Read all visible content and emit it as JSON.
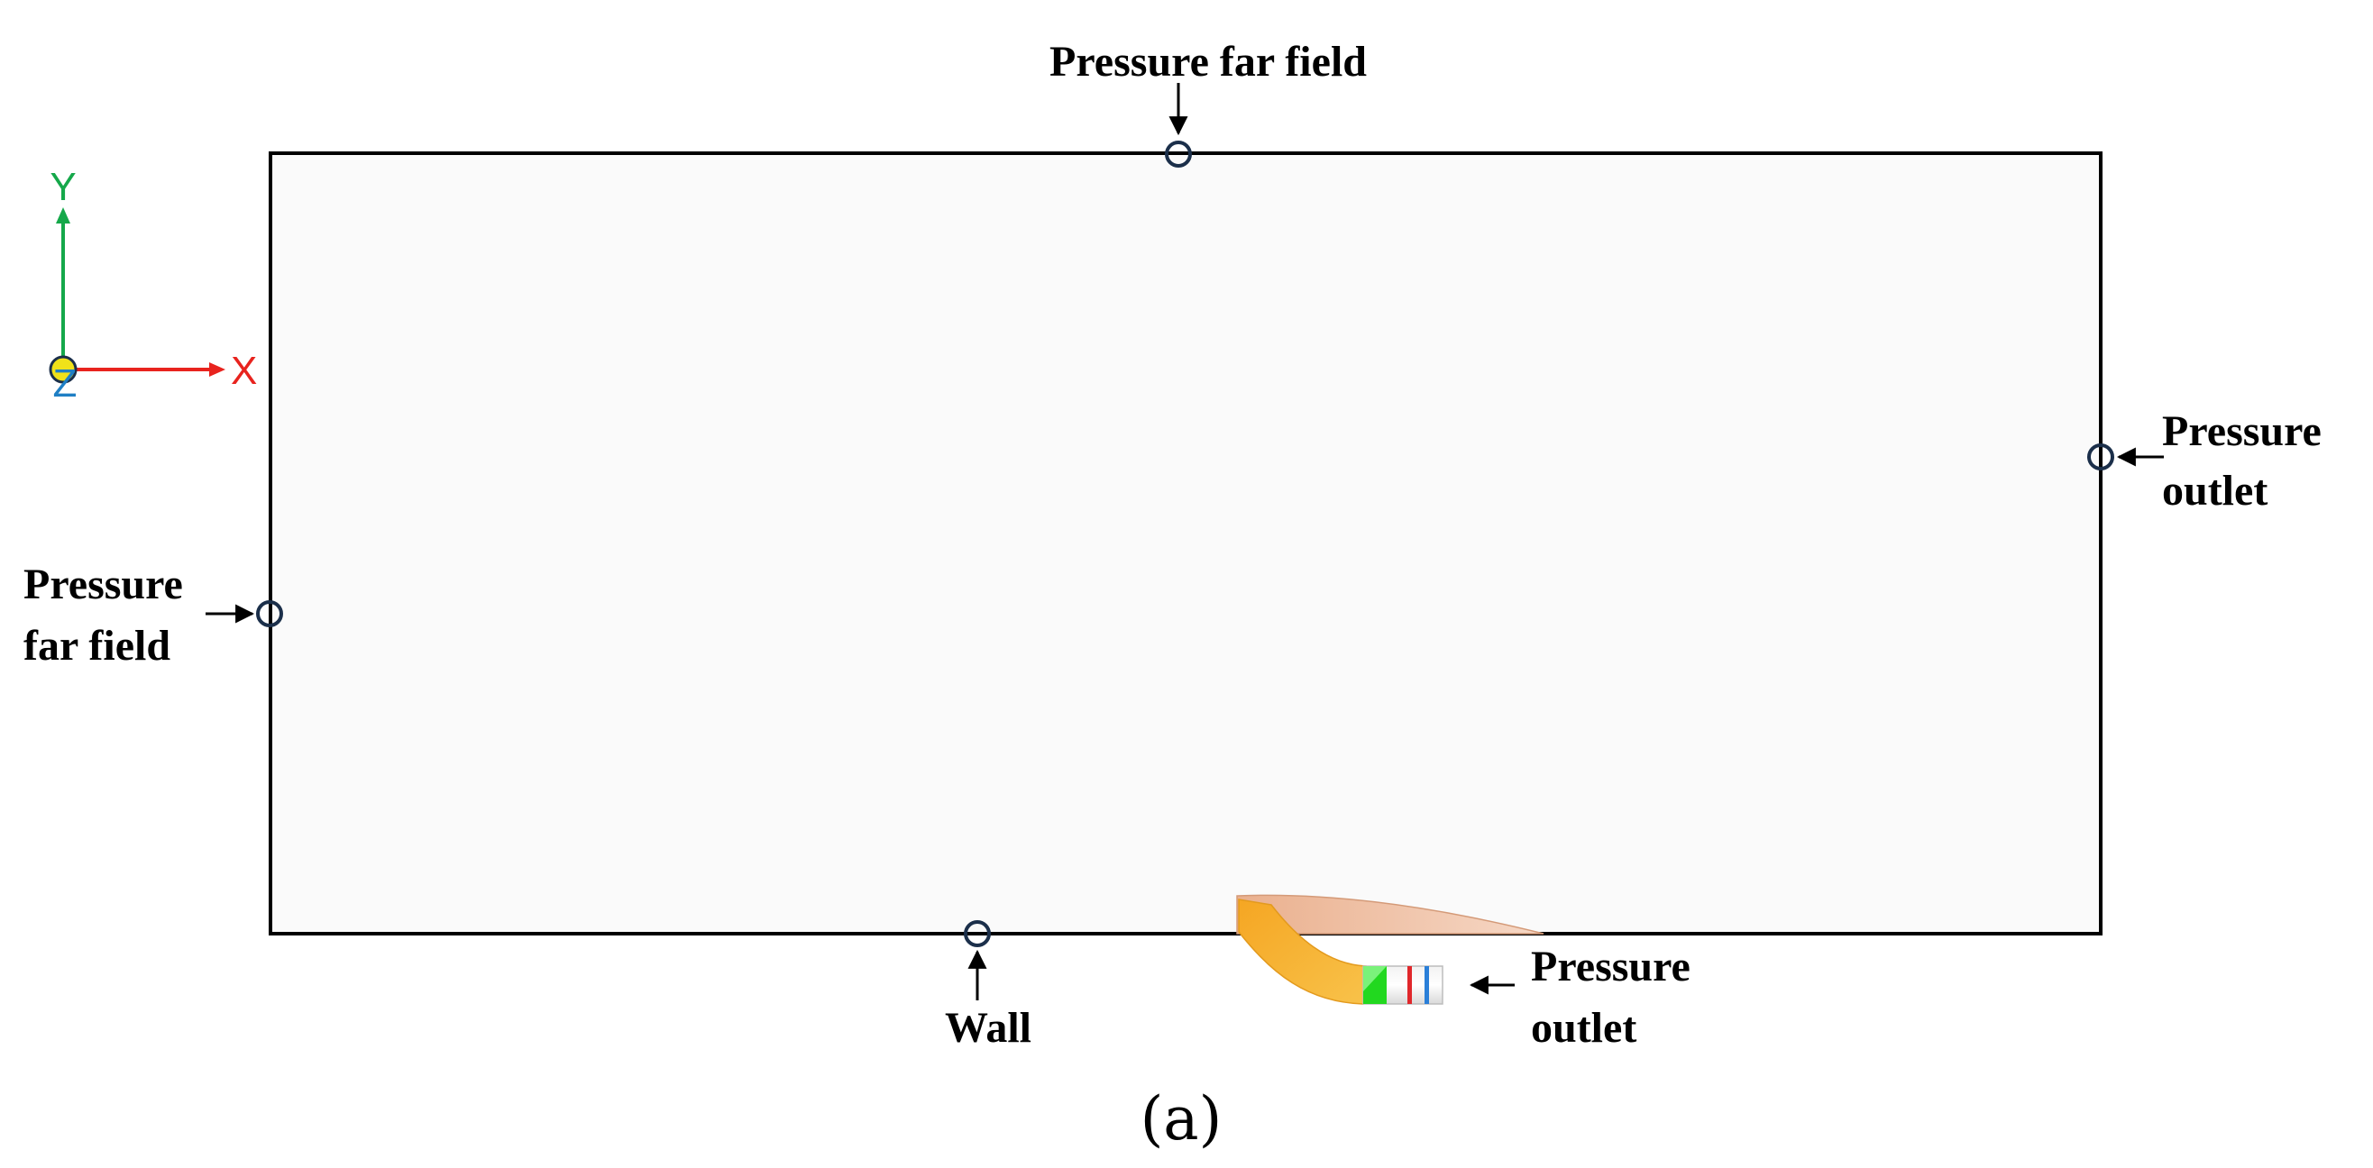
{
  "labels": {
    "top": "Pressure far field",
    "left_line1": "Pressure",
    "left_line2": "far field",
    "right_line1": "Pressure",
    "right_line2": "outlet",
    "bottom_wall": "Wall",
    "nozzle_line1": "Pressure",
    "nozzle_line2": "outlet"
  },
  "axes": {
    "y": "Y",
    "x": "X",
    "z": "Z"
  },
  "caption": "(a)",
  "colors": {
    "axis_y": "#15a84a",
    "axis_x": "#e8231e",
    "axis_z": "#1f7fc4",
    "origin": "#f0e21a",
    "domain_fill": "#fafafa",
    "boundary_marker": "#1b2f4a",
    "nozzle_orange": "#f7b733",
    "nozzle_top": "#eebb9a",
    "inlet_green": "#22d81f",
    "band_red": "#e0272b",
    "band_blue": "#2a7fd8"
  }
}
